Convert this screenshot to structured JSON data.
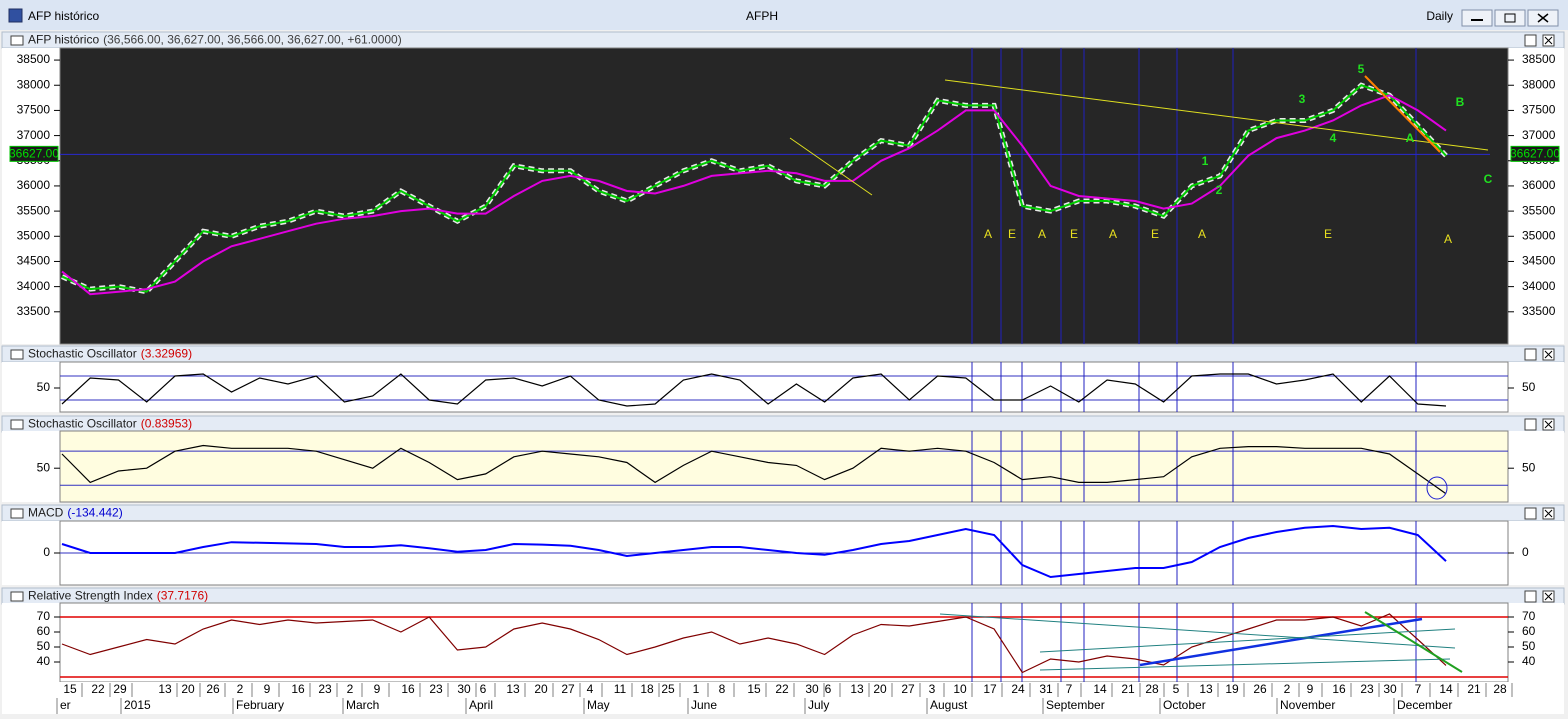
{
  "window": {
    "title": "AFP histórico",
    "symbol": "AFPH",
    "period": "Daily"
  },
  "x_axis": {
    "days": [
      "15",
      "22",
      "29",
      "13",
      "20",
      "26",
      "2",
      "9",
      "16",
      "23",
      "2",
      "9",
      "16",
      "23",
      "30",
      "6",
      "13",
      "20",
      "27",
      "4",
      "11",
      "18",
      "25",
      "1",
      "8",
      "15",
      "22",
      "30",
      "6",
      "13",
      "20",
      "27",
      "3",
      "10",
      "17",
      "24",
      "31",
      "7",
      "14",
      "21",
      "28",
      "5",
      "13",
      "19",
      "26",
      "2",
      "9",
      "16",
      "23",
      "30",
      "7",
      "14",
      "21",
      "28"
    ],
    "months": [
      "er",
      "2015",
      "February",
      "March",
      "April",
      "May",
      "June",
      "July",
      "August",
      "September",
      "October",
      "November",
      "December"
    ]
  },
  "chart_data": [
    {
      "type": "line",
      "title": "AFP histórico",
      "subtitle": "(36,566.00, 36,627.00, 36,566.00, 36,627.00, +61.0000)",
      "subtitle_color": "#404040",
      "background": "#262626",
      "ylim": [
        32900,
        38700
      ],
      "yticks": [
        33500,
        34000,
        34500,
        35000,
        35500,
        36000,
        36500,
        37000,
        37500,
        38000,
        38500
      ],
      "last_price": {
        "value": 36627,
        "label": "36627.00"
      },
      "annotations": [
        "A",
        "E",
        "A",
        "E",
        "A",
        "E",
        "A",
        "E",
        "A"
      ],
      "waves": [
        "1",
        "2",
        "3",
        "4",
        "5",
        "A",
        "B",
        "C"
      ],
      "series": [
        {
          "color": "#00cc00",
          "values": [
            34200,
            33950,
            34000,
            33900,
            34500,
            35100,
            35000,
            35200,
            35300,
            35500,
            35400,
            35500,
            35900,
            35600,
            35300,
            35600,
            36400,
            36300,
            36300,
            35900,
            35700,
            36000,
            36300,
            36500,
            36300,
            36400,
            36100,
            36000,
            36500,
            36900,
            36800,
            37700,
            37600,
            37600,
            35600,
            35500,
            35700,
            35700,
            35600,
            35400,
            36000,
            36200,
            37100,
            37300,
            37300,
            37500,
            38000,
            37800,
            37200,
            36600
          ]
        },
        {
          "color": "#e000e0",
          "values": [
            34300,
            33850,
            33900,
            33950,
            34100,
            34500,
            34800,
            34950,
            35100,
            35250,
            35350,
            35400,
            35500,
            35550,
            35450,
            35450,
            35800,
            36100,
            36200,
            36100,
            35900,
            35850,
            36000,
            36200,
            36250,
            36300,
            36250,
            36100,
            36100,
            36500,
            36750,
            37100,
            37500,
            37500,
            36800,
            36000,
            35800,
            35750,
            35700,
            35550,
            35650,
            36000,
            36600,
            36950,
            37100,
            37300,
            37600,
            37800,
            37500,
            37100
          ]
        }
      ]
    },
    {
      "type": "line",
      "title": "Stochastic Oscillator",
      "subtitle": "(3.32969)",
      "subtitle_color": "#d00000",
      "background": "#ffffff",
      "ylim": [
        -5,
        110
      ],
      "yticks": [
        50
      ],
      "levels": [
        20,
        80
      ],
      "series": [
        {
          "color": "#000000",
          "values": [
            10,
            75,
            70,
            15,
            80,
            85,
            40,
            75,
            60,
            80,
            15,
            30,
            85,
            20,
            10,
            70,
            75,
            55,
            80,
            20,
            5,
            10,
            70,
            85,
            70,
            10,
            60,
            15,
            75,
            85,
            20,
            80,
            75,
            20,
            20,
            55,
            15,
            70,
            60,
            15,
            80,
            85,
            85,
            60,
            70,
            85,
            15,
            80,
            10,
            5
          ]
        }
      ]
    },
    {
      "type": "line",
      "title": "Stochastic Oscillator",
      "subtitle": "(0.83953)",
      "subtitle_color": "#d00000",
      "background": "#fffde0",
      "ylim": [
        -6,
        112
      ],
      "yticks": [
        50
      ],
      "levels": [
        20,
        80
      ],
      "series": [
        {
          "color": "#000000",
          "values": [
            75,
            25,
            45,
            50,
            80,
            90,
            85,
            85,
            85,
            80,
            65,
            50,
            85,
            60,
            30,
            40,
            70,
            80,
            75,
            70,
            60,
            25,
            55,
            80,
            70,
            60,
            55,
            30,
            50,
            85,
            80,
            85,
            80,
            60,
            30,
            35,
            25,
            25,
            30,
            35,
            70,
            85,
            88,
            88,
            85,
            85,
            85,
            75,
            40,
            5
          ]
        }
      ]
    },
    {
      "type": "line",
      "title": "MACD",
      "subtitle": "(-134.442)",
      "subtitle_color": "#0000d0",
      "background": "#ffffff",
      "ylim": [
        -500,
        500
      ],
      "yticks": [
        0
      ],
      "levels": [
        0
      ],
      "series": [
        {
          "color": "#0000ff",
          "values": [
            150,
            0,
            0,
            0,
            0,
            100,
            180,
            170,
            160,
            150,
            100,
            100,
            130,
            80,
            20,
            50,
            150,
            140,
            120,
            50,
            -50,
            0,
            50,
            100,
            100,
            50,
            0,
            -30,
            50,
            150,
            200,
            300,
            400,
            300,
            -200,
            -400,
            -350,
            -300,
            -250,
            -250,
            -150,
            100,
            250,
            350,
            420,
            450,
            400,
            420,
            300,
            -134.442
          ]
        }
      ]
    },
    {
      "type": "line",
      "title": "Relative Strength Index",
      "subtitle": "(37.7176)",
      "subtitle_color": "#d00000",
      "background": "#ffffff",
      "ylim": [
        28,
        78
      ],
      "yticks": [
        40,
        50,
        60,
        70
      ],
      "levels": [
        30,
        70
      ],
      "level_color": "#e00000",
      "series": [
        {
          "color": "#800000",
          "values": [
            52,
            45,
            50,
            55,
            52,
            62,
            68,
            65,
            68,
            66,
            67,
            68,
            60,
            70,
            48,
            50,
            62,
            66,
            62,
            55,
            45,
            50,
            56,
            60,
            52,
            56,
            52,
            45,
            58,
            65,
            64,
            67,
            70,
            62,
            33,
            42,
            40,
            44,
            42,
            38,
            50,
            56,
            62,
            68,
            68,
            70,
            64,
            72,
            55,
            37.7176
          ]
        }
      ]
    }
  ]
}
